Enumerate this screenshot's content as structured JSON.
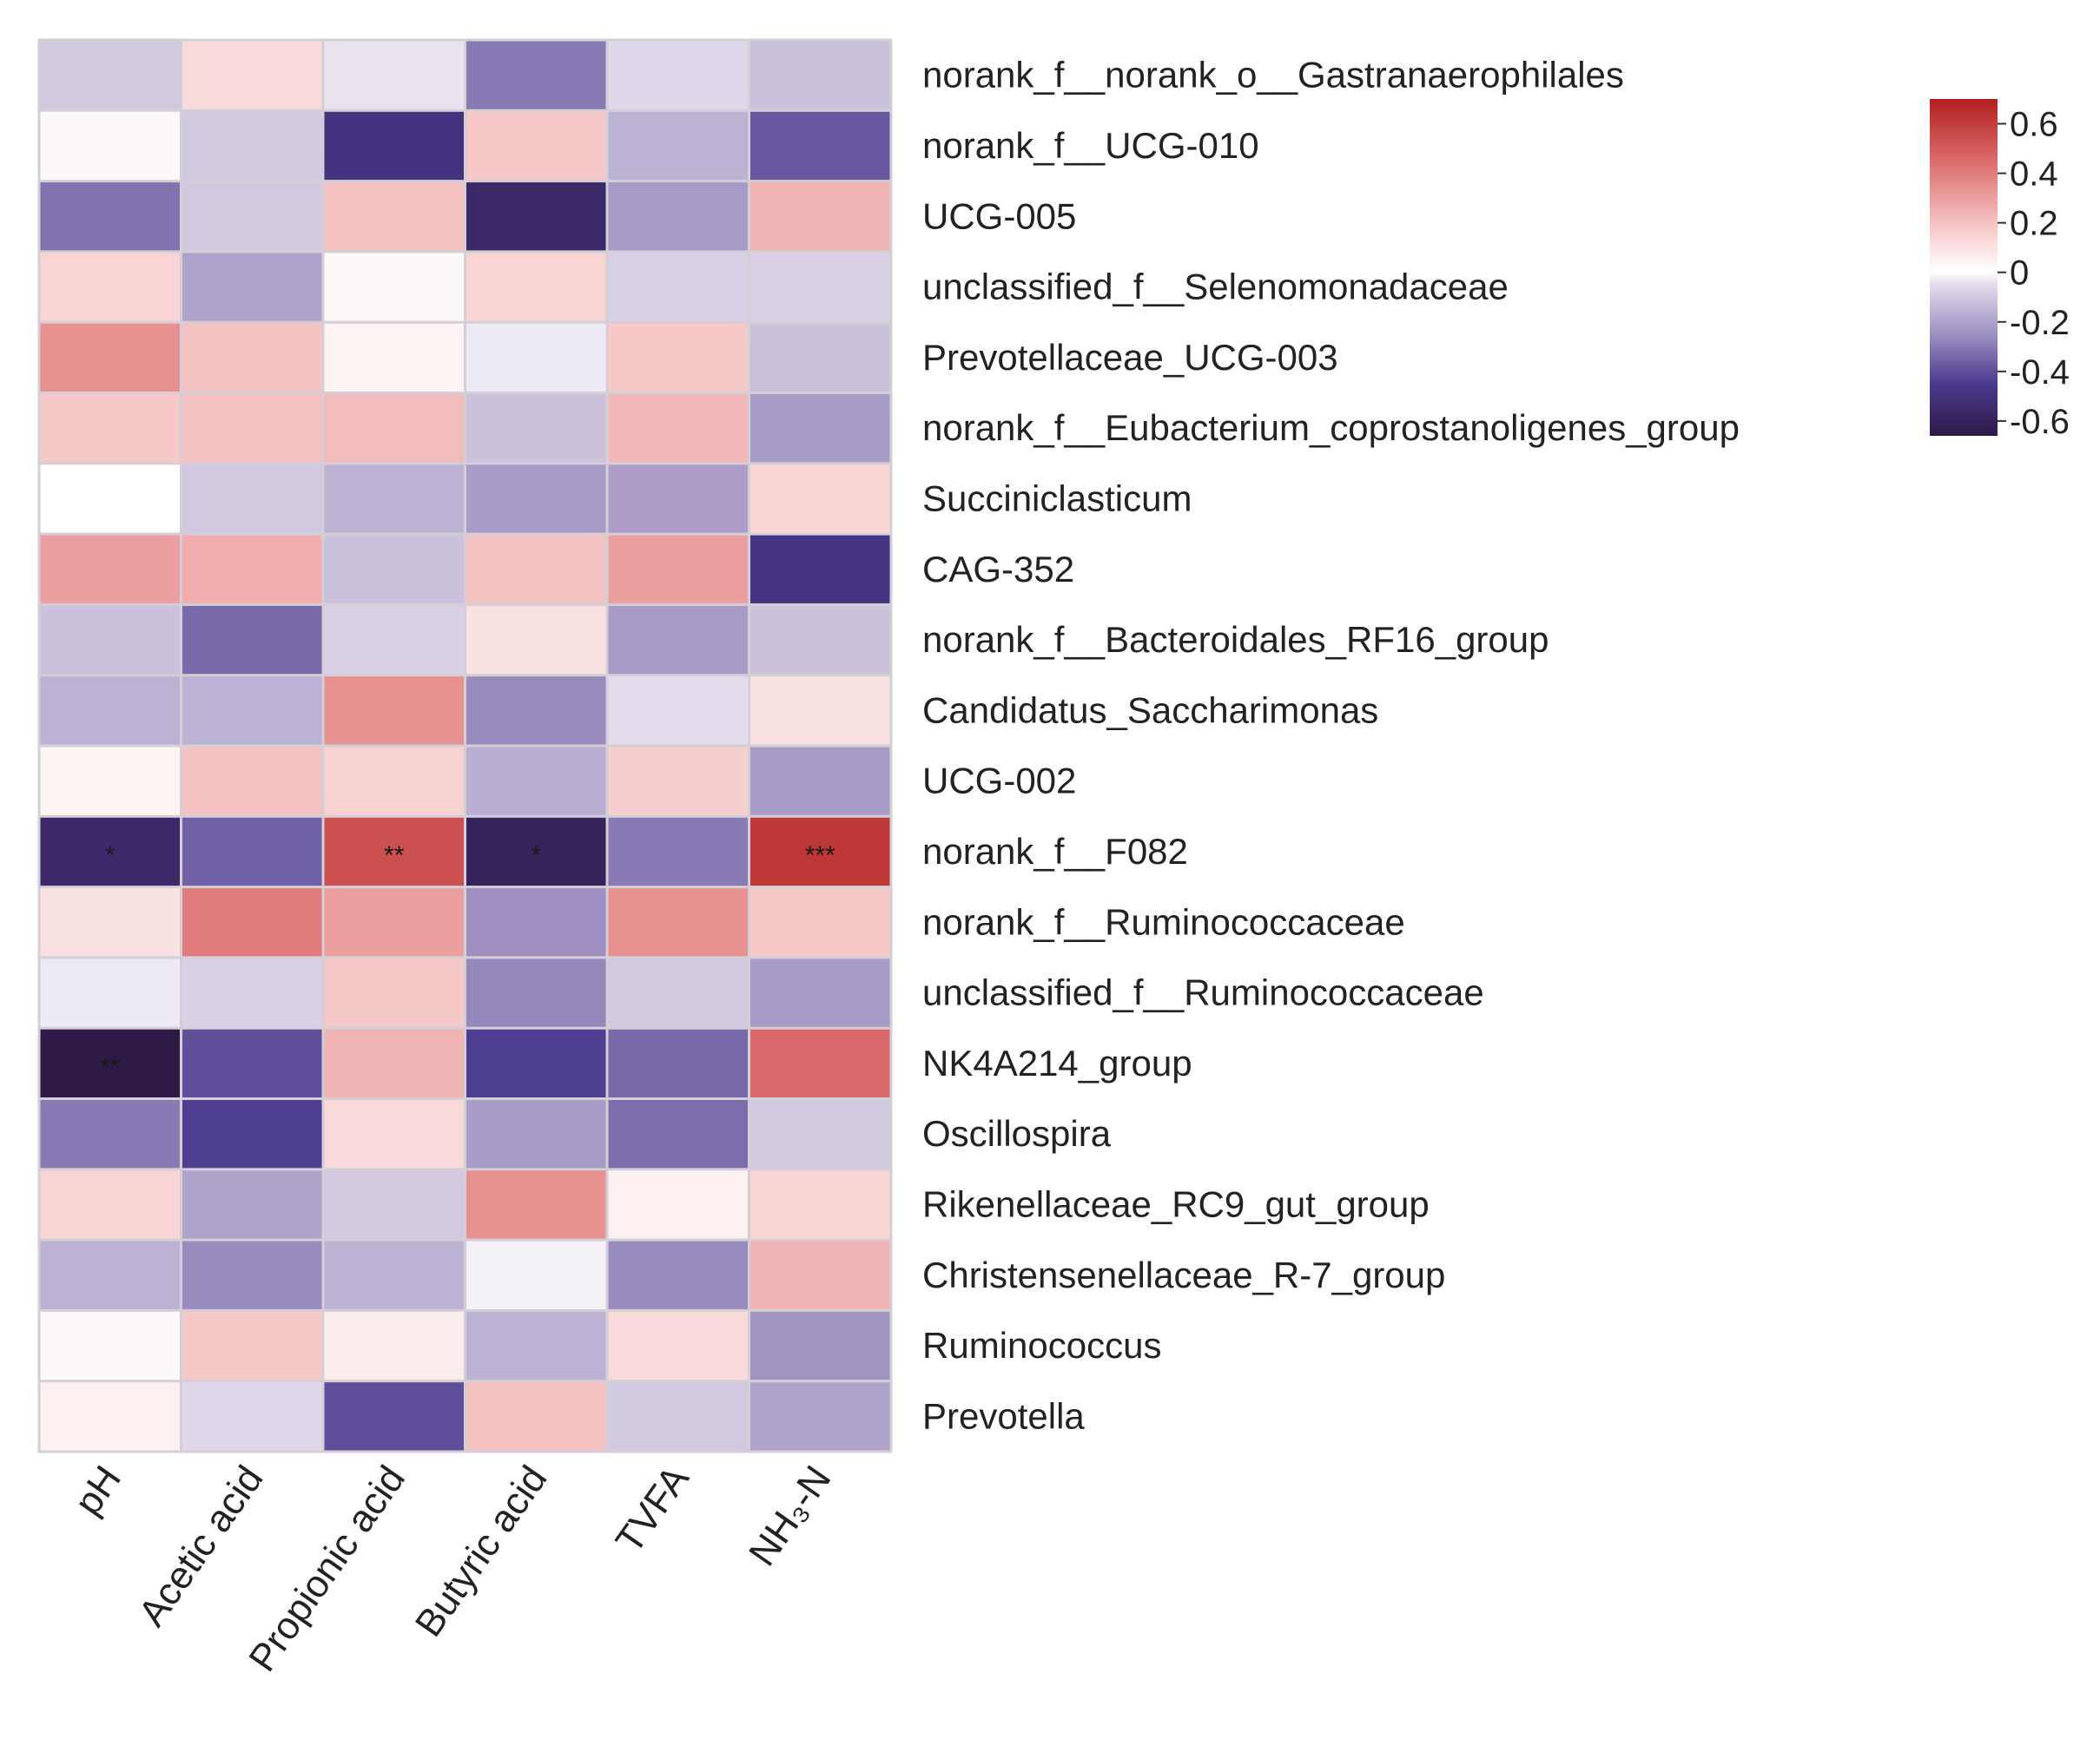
{
  "chart_data": {
    "type": "heatmap",
    "x_categories": [
      "pH",
      "Acetic acid",
      "Propionic acid",
      "Butyric acid",
      "TVFA",
      "NH₃-N"
    ],
    "y_categories": [
      "norank_f__norank_o__Gastranaerophilales",
      "norank_f__UCG-010",
      "UCG-005",
      "unclassified_f__Selenomonadaceae",
      "Prevotellaceae_UCG-003",
      "norank_f__Eubacterium_coprostanoligenes_group",
      "Succiniclasticum",
      "CAG-352",
      "norank_f__Bacteroidales_RF16_group",
      "Candidatus_Saccharimonas",
      "UCG-002",
      "norank_f__F082",
      "norank_f__Ruminococcaceae",
      "unclassified_f__Ruminococcaceae",
      "NK4A214_group",
      "Oscillospira",
      "Rikenellaceae_RC9_gut_group",
      "Christensenellaceae_R-7_group",
      "Ruminococcus",
      "Prevotella"
    ],
    "values": [
      [
        -0.1,
        0.12,
        -0.04,
        -0.3,
        -0.06,
        -0.12
      ],
      [
        0.02,
        -0.1,
        -0.5,
        0.18,
        -0.16,
        -0.38
      ],
      [
        -0.32,
        -0.1,
        0.2,
        -0.56,
        -0.22,
        0.24
      ],
      [
        0.14,
        -0.2,
        0.02,
        0.14,
        -0.08,
        -0.08
      ],
      [
        0.34,
        0.2,
        0.04,
        -0.03,
        0.18,
        -0.12
      ],
      [
        0.18,
        0.2,
        0.22,
        -0.12,
        0.23,
        -0.22
      ],
      [
        0.0,
        -0.1,
        -0.16,
        -0.22,
        -0.21,
        0.14
      ],
      [
        0.3,
        0.26,
        -0.12,
        0.2,
        0.3,
        -0.48
      ],
      [
        -0.12,
        -0.34,
        -0.08,
        0.1,
        -0.22,
        -0.12
      ],
      [
        -0.16,
        -0.16,
        0.34,
        -0.26,
        -0.05,
        0.1
      ],
      [
        0.04,
        0.2,
        0.15,
        -0.17,
        0.16,
        -0.22
      ],
      [
        -0.56,
        -0.36,
        0.54,
        -0.6,
        -0.3,
        0.62
      ],
      [
        0.1,
        0.4,
        0.3,
        -0.25,
        0.34,
        0.18
      ],
      [
        -0.03,
        -0.08,
        0.18,
        -0.27,
        -0.1,
        -0.22
      ],
      [
        -0.66,
        -0.4,
        0.24,
        -0.44,
        -0.34,
        0.46
      ],
      [
        -0.3,
        -0.44,
        0.12,
        -0.22,
        -0.33,
        -0.1
      ],
      [
        0.14,
        -0.2,
        -0.1,
        0.34,
        0.05,
        0.14
      ],
      [
        -0.16,
        -0.26,
        -0.16,
        -0.02,
        -0.26,
        0.24
      ],
      [
        0.02,
        0.18,
        0.06,
        -0.16,
        0.12,
        -0.24
      ],
      [
        0.05,
        -0.06,
        -0.4,
        0.2,
        -0.1,
        -0.2
      ]
    ],
    "significance": [
      [
        "",
        "",
        "",
        "",
        "",
        ""
      ],
      [
        "",
        "",
        "",
        "",
        "",
        ""
      ],
      [
        "",
        "",
        "",
        "",
        "",
        ""
      ],
      [
        "",
        "",
        "",
        "",
        "",
        ""
      ],
      [
        "",
        "",
        "",
        "",
        "",
        ""
      ],
      [
        "",
        "",
        "",
        "",
        "",
        ""
      ],
      [
        "",
        "",
        "",
        "",
        "",
        ""
      ],
      [
        "",
        "",
        "",
        "",
        "",
        ""
      ],
      [
        "",
        "",
        "",
        "",
        "",
        ""
      ],
      [
        "",
        "",
        "",
        "",
        "",
        ""
      ],
      [
        "",
        "",
        "",
        "",
        "",
        ""
      ],
      [
        "*",
        "",
        "**",
        "*",
        "",
        "***"
      ],
      [
        "",
        "",
        "",
        "",
        "",
        ""
      ],
      [
        "",
        "",
        "",
        "",
        "",
        ""
      ],
      [
        "**",
        "",
        "",
        "",
        "",
        ""
      ],
      [
        "",
        "",
        "",
        "",
        "",
        ""
      ],
      [
        "",
        "",
        "",
        "",
        "",
        ""
      ],
      [
        "",
        "",
        "",
        "",
        "",
        ""
      ],
      [
        "",
        "",
        "",
        "",
        "",
        ""
      ],
      [
        "",
        "",
        "",
        "",
        "",
        ""
      ]
    ],
    "color_scale": {
      "min": -0.66,
      "max": 0.7,
      "stops": [
        {
          "value": -0.66,
          "color": "#2e1a47"
        },
        {
          "value": -0.45,
          "color": "#4a3a8e"
        },
        {
          "value": -0.25,
          "color": "#9e8fc0"
        },
        {
          "value": -0.05,
          "color": "#e3dcec"
        },
        {
          "value": 0.0,
          "color": "#ffffff"
        },
        {
          "value": 0.2,
          "color": "#f5c2c2"
        },
        {
          "value": 0.45,
          "color": "#dc6b6b"
        },
        {
          "value": 0.7,
          "color": "#b0201f"
        }
      ],
      "ticks": [
        0.6,
        0.4,
        0.2,
        0,
        -0.2,
        -0.4,
        -0.6
      ]
    },
    "legend_position": "top-right"
  }
}
